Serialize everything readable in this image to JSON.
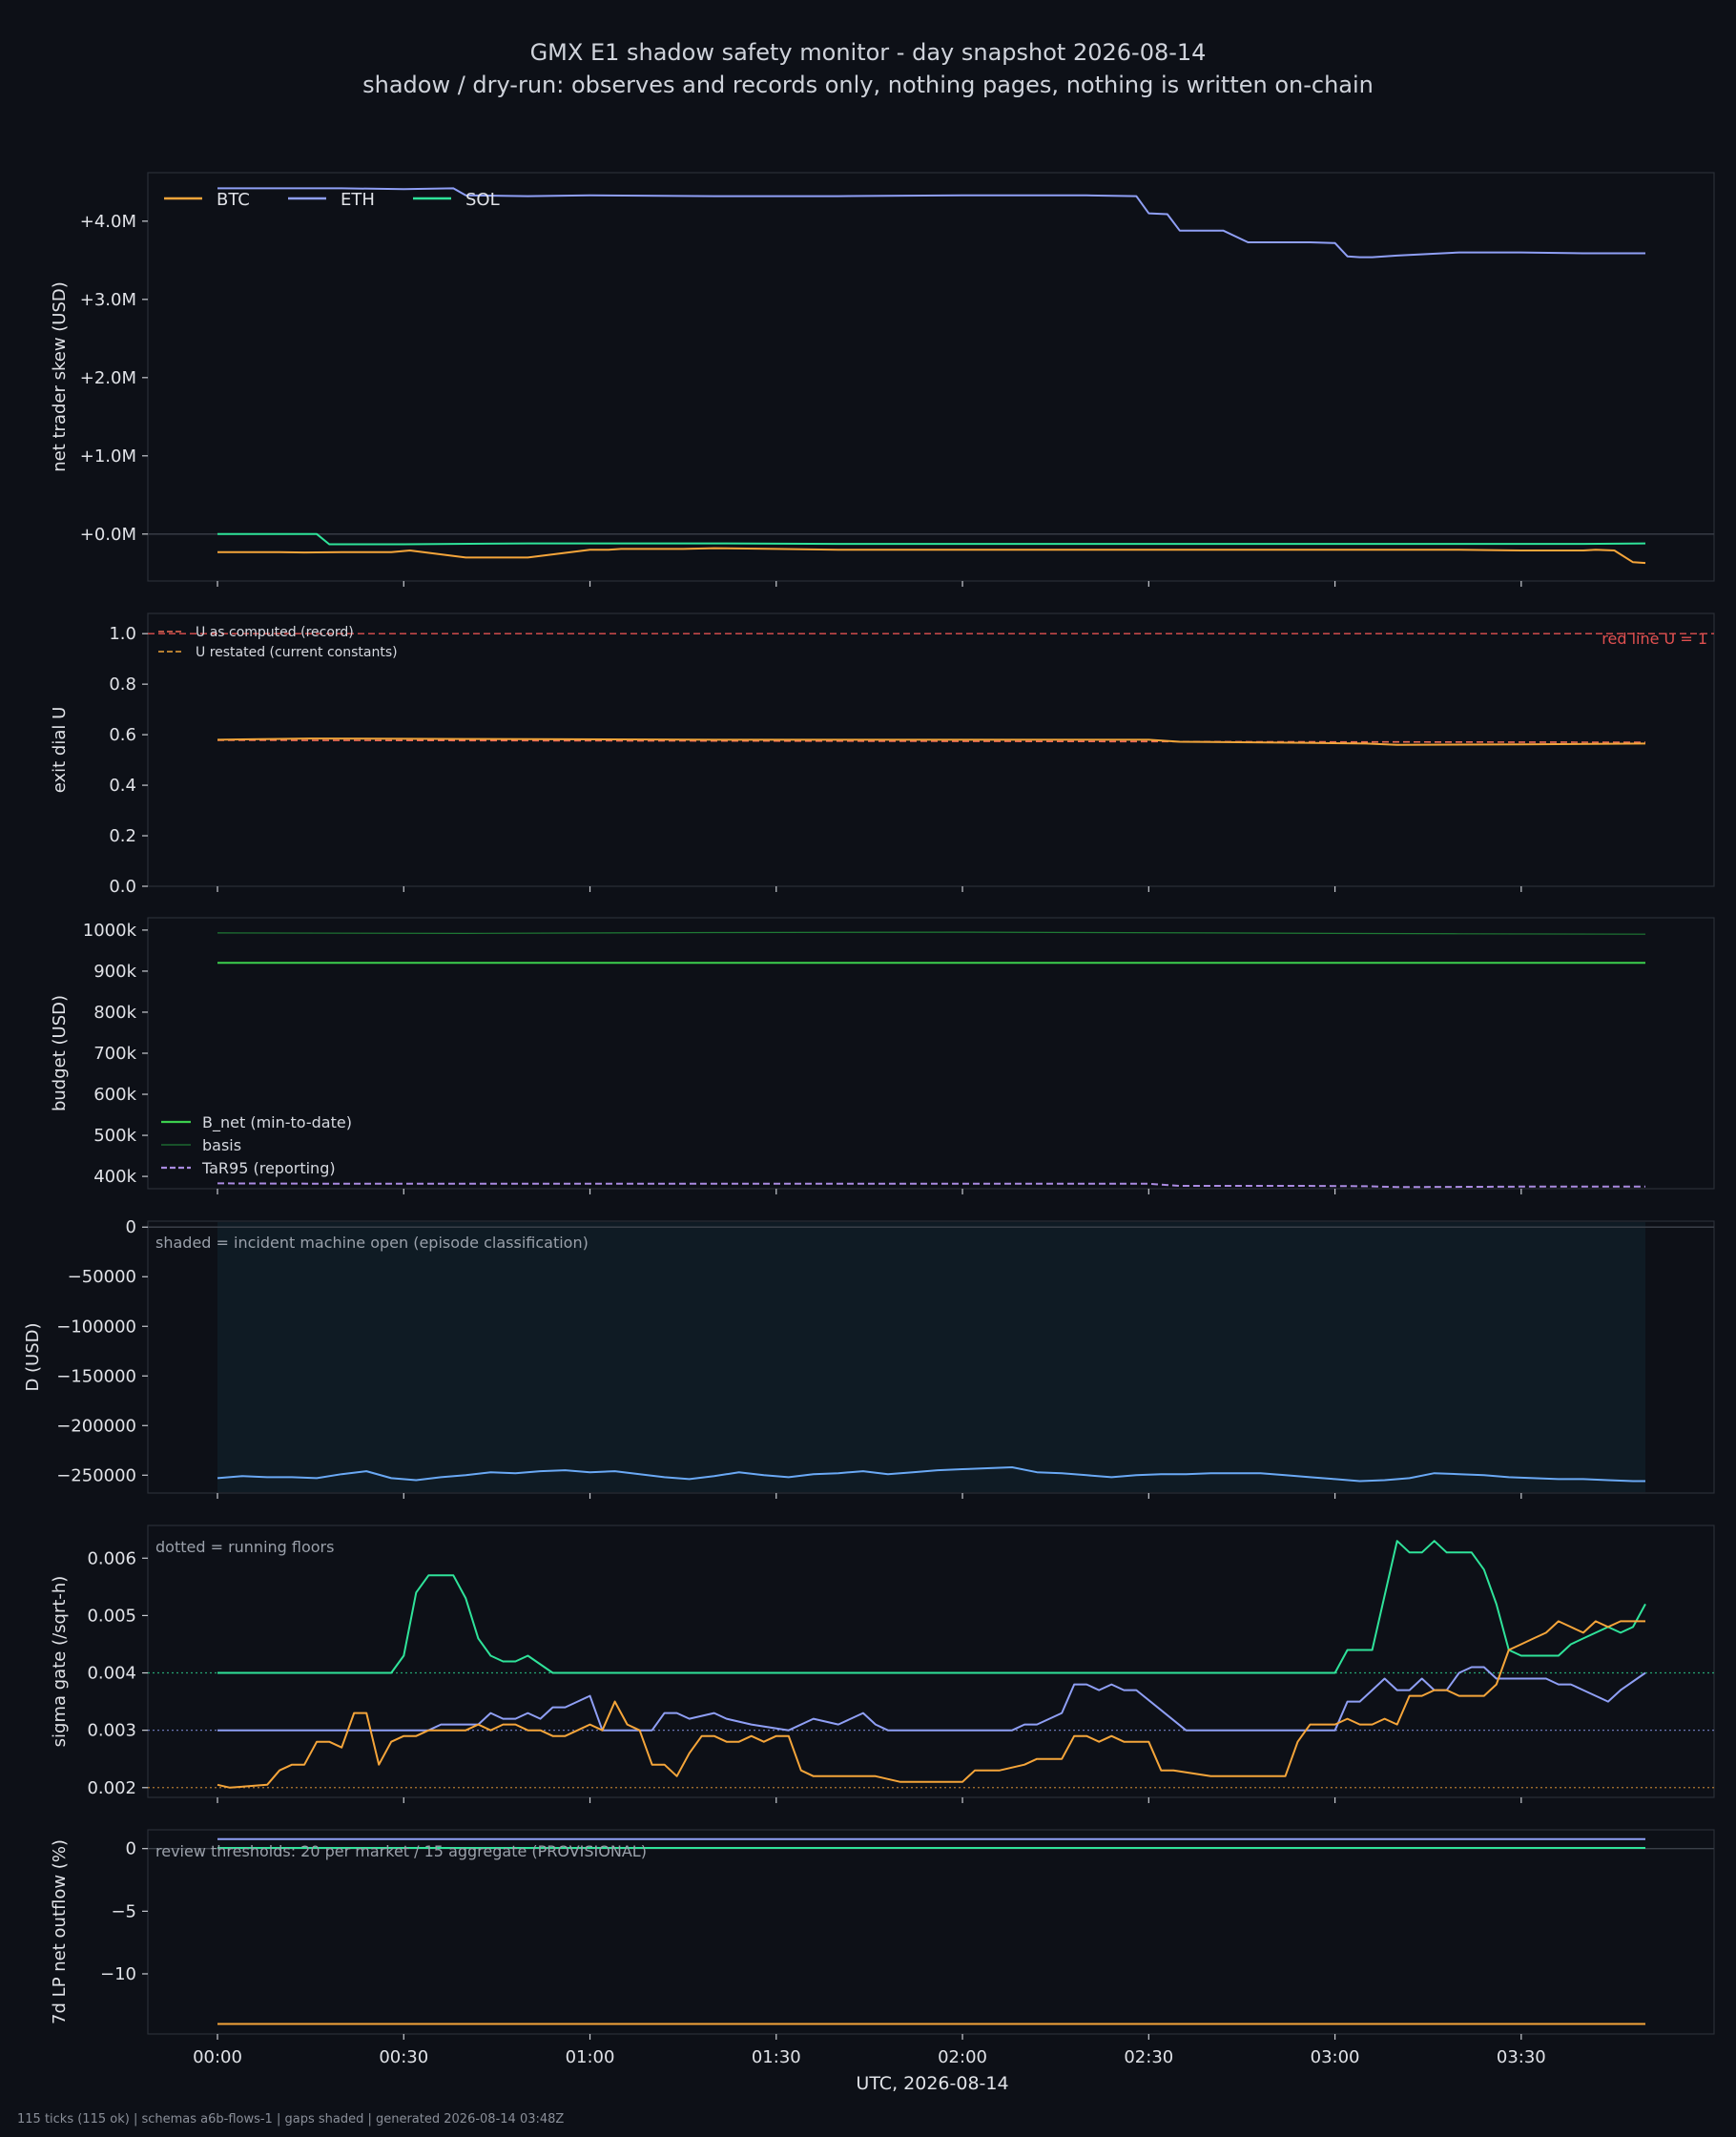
{
  "page": {
    "title": "GMX E1 shadow safety monitor - day snapshot 2026-08-14",
    "subtitle": "shadow / dry-run: observes and records only, nothing pages, nothing is written on-chain",
    "footer": "115 ticks (115 ok) | schemas a6b-flows-1 | gaps shaded | generated 2026-08-14 03:48Z"
  },
  "chart_data": [
    {
      "type": "line",
      "id": "skew",
      "ylabel": "net trader skew (USD)",
      "ylim": [
        -600000,
        4620000
      ],
      "yticks": [
        0,
        1000000,
        2000000,
        3000000,
        4000000
      ],
      "ytick_labels": [
        "+0.0M",
        "+1.0M",
        "+2.0M",
        "+3.0M",
        "+4.0M"
      ],
      "legend": {
        "placement": "top-left",
        "horizontal": true
      },
      "series": [
        {
          "name": "BTC",
          "color": "#f5a53a",
          "x": [
            0,
            10,
            14,
            20,
            25,
            28,
            31,
            40,
            50,
            60,
            63,
            65,
            70,
            75,
            80,
            90,
            100,
            120,
            150,
            180,
            200,
            210,
            212,
            220,
            222,
            225,
            228,
            230
          ],
          "y": [
            -230000,
            -230000,
            -235000,
            -230000,
            -230000,
            -230000,
            -210000,
            -300000,
            -300000,
            -200000,
            -200000,
            -190000,
            -190000,
            -190000,
            -180000,
            -190000,
            -200000,
            -200000,
            -200000,
            -200000,
            -200000,
            -210000,
            -210000,
            -210000,
            -200000,
            -210000,
            -360000,
            -370000
          ]
        },
        {
          "name": "ETH",
          "color": "#8f9ff5",
          "x": [
            0,
            20,
            30,
            38,
            40,
            50,
            60,
            80,
            100,
            120,
            140,
            148,
            150,
            153,
            155,
            160,
            162,
            166,
            170,
            176,
            180,
            182,
            184,
            186,
            190,
            195,
            200,
            210,
            220,
            230
          ],
          "y": [
            4420000,
            4420000,
            4410000,
            4420000,
            4330000,
            4320000,
            4330000,
            4320000,
            4320000,
            4330000,
            4330000,
            4320000,
            4100000,
            4090000,
            3880000,
            3880000,
            3880000,
            3730000,
            3730000,
            3730000,
            3720000,
            3550000,
            3540000,
            3540000,
            3560000,
            3580000,
            3600000,
            3600000,
            3590000,
            3590000
          ]
        },
        {
          "name": "SOL",
          "color": "#2fe39a",
          "x": [
            0,
            16,
            18,
            30,
            50,
            80,
            100,
            130,
            160,
            190,
            220,
            230
          ],
          "y": [
            0,
            0,
            -130000,
            -130000,
            -120000,
            -120000,
            -125000,
            -125000,
            -125000,
            -125000,
            -125000,
            -120000
          ]
        }
      ]
    },
    {
      "type": "line",
      "id": "exitdial",
      "ylabel": "exit dial U",
      "ylim": [
        0,
        1.08
      ],
      "yticks": [
        0,
        0.2,
        0.4,
        0.6,
        0.8,
        1.0
      ],
      "ytick_labels": [
        "0.0",
        "0.2",
        "0.4",
        "0.6",
        "0.8",
        "1.0"
      ],
      "legend": {
        "placement": "top-left"
      },
      "annotation": "red line U = 1",
      "series": [
        {
          "name": "U as computed (record)",
          "color": "#ef6b56",
          "x": [
            0,
            230
          ],
          "y": [
            0.578,
            0.57
          ]
        },
        {
          "name": "U restated (current constants)",
          "color": "#f0a43a",
          "x": [
            0,
            15,
            40,
            80,
            120,
            150,
            155,
            175,
            185,
            190,
            210,
            230
          ],
          "y": [
            0.58,
            0.585,
            0.583,
            0.58,
            0.58,
            0.58,
            0.572,
            0.568,
            0.565,
            0.56,
            0.562,
            0.565
          ]
        }
      ],
      "reference_lines": [
        {
          "y": 1.0,
          "color": "#e05050",
          "style": "dashed"
        }
      ]
    },
    {
      "type": "line",
      "id": "budget",
      "ylabel": "budget (USD)",
      "ylim": [
        370000,
        1030000
      ],
      "yticks": [
        400000,
        500000,
        600000,
        700000,
        800000,
        900000,
        1000000
      ],
      "ytick_labels": [
        "400k",
        "500k",
        "600k",
        "700k",
        "800k",
        "900k",
        "1000k"
      ],
      "legend": {
        "placement": "bottom-left"
      },
      "series": [
        {
          "name": "B_net (min-to-date)",
          "color": "#3ccf4e",
          "x": [
            0,
            230
          ],
          "y": [
            920000,
            920000
          ]
        },
        {
          "name": "basis",
          "color": "#1f7a35",
          "x": [
            0,
            40,
            80,
            120,
            160,
            200,
            230
          ],
          "y": [
            993000,
            992000,
            994000,
            995000,
            993000,
            991000,
            990000
          ]
        },
        {
          "name": "TaR95 (reporting)",
          "color": "#a98ae0",
          "x": [
            0,
            20,
            60,
            100,
            150,
            155,
            175,
            185,
            190,
            210,
            230
          ],
          "y": [
            383000,
            382000,
            382000,
            382000,
            382000,
            377000,
            377000,
            376000,
            374000,
            375000,
            375000
          ]
        }
      ]
    },
    {
      "type": "line",
      "id": "drawdown",
      "ylabel": "D (USD)",
      "ylim": [
        -268000,
        6000
      ],
      "yticks": [
        0,
        -50000,
        -100000,
        -150000,
        -200000,
        -250000
      ],
      "ytick_labels": [
        "0",
        "−50000",
        "−100000",
        "−150000",
        "−200000",
        "−250000"
      ],
      "annotation": "shaded = incident machine open (episode classification)",
      "shaded_span": [
        0,
        230
      ],
      "series": [
        {
          "name": "D",
          "color": "#6aa9f5",
          "x": [
            0,
            4,
            8,
            12,
            16,
            20,
            24,
            28,
            32,
            36,
            40,
            44,
            48,
            52,
            56,
            60,
            64,
            68,
            72,
            76,
            80,
            84,
            88,
            92,
            96,
            100,
            104,
            108,
            112,
            116,
            120,
            124,
            128,
            132,
            136,
            140,
            144,
            148,
            152,
            156,
            160,
            164,
            168,
            172,
            176,
            180,
            184,
            188,
            192,
            196,
            200,
            204,
            208,
            212,
            216,
            220,
            224,
            228,
            230
          ],
          "y": [
            -253000,
            -251000,
            -252000,
            -252000,
            -253000,
            -249000,
            -246000,
            -253000,
            -255000,
            -252000,
            -250000,
            -247000,
            -248000,
            -246000,
            -245000,
            -247000,
            -246000,
            -249000,
            -252000,
            -254000,
            -251000,
            -247000,
            -250000,
            -252000,
            -249000,
            -248000,
            -246000,
            -249000,
            -247000,
            -245000,
            -244000,
            -243000,
            -242000,
            -247000,
            -248000,
            -250000,
            -252000,
            -250000,
            -249000,
            -249000,
            -248000,
            -248000,
            -248000,
            -250000,
            -252000,
            -254000,
            -256000,
            -255000,
            -253000,
            -248000,
            -249000,
            -250000,
            -252000,
            -253000,
            -254000,
            -254000,
            -255000,
            -256000,
            -256000
          ]
        }
      ]
    },
    {
      "type": "line",
      "id": "sigma",
      "ylabel": "sigma gate (/sqrt-h)",
      "ylim": [
        0.00183,
        0.00657
      ],
      "yticks": [
        0.002,
        0.003,
        0.004,
        0.005,
        0.006
      ],
      "ytick_labels": [
        "0.002",
        "0.003",
        "0.004",
        "0.005",
        "0.006"
      ],
      "annotation": "dotted = running floors",
      "reference_lines": [
        {
          "y": 0.004,
          "color": "#2fe39a",
          "style": "dotted"
        },
        {
          "y": 0.003,
          "color": "#8f9ff5",
          "style": "dotted"
        },
        {
          "y": 0.002,
          "color": "#f5a53a",
          "style": "dotted"
        }
      ],
      "series": [
        {
          "name": "SOL",
          "color": "#2fe39a",
          "x": [
            0,
            28,
            30,
            32,
            34,
            38,
            40,
            42,
            44,
            46,
            48,
            50,
            54,
            180,
            182,
            184,
            186,
            190,
            192,
            194,
            196,
            198,
            200,
            202,
            204,
            206,
            208,
            210,
            212,
            216,
            218,
            220,
            222,
            224,
            226,
            228,
            230
          ],
          "y": [
            0.004,
            0.004,
            0.0043,
            0.0054,
            0.0057,
            0.0057,
            0.0053,
            0.0046,
            0.0043,
            0.0042,
            0.0042,
            0.0043,
            0.004,
            0.004,
            0.0044,
            0.0044,
            0.0044,
            0.0063,
            0.0061,
            0.0061,
            0.0063,
            0.0061,
            0.0061,
            0.0061,
            0.0058,
            0.0052,
            0.0044,
            0.0043,
            0.0043,
            0.0043,
            0.0045,
            0.0046,
            0.0047,
            0.0048,
            0.0047,
            0.0048,
            0.0052
          ]
        },
        {
          "name": "ETH",
          "color": "#8f9ff5",
          "x": [
            0,
            34,
            36,
            42,
            44,
            46,
            48,
            50,
            52,
            54,
            56,
            58,
            60,
            62,
            64,
            68,
            70,
            72,
            74,
            76,
            80,
            82,
            86,
            92,
            96,
            100,
            104,
            106,
            108,
            110,
            112,
            114,
            128,
            130,
            132,
            134,
            136,
            138,
            140,
            142,
            144,
            146,
            148,
            156,
            180,
            182,
            184,
            186,
            188,
            190,
            192,
            194,
            196,
            198,
            200,
            202,
            204,
            206,
            208,
            210,
            212,
            214,
            216,
            218,
            220,
            222,
            224,
            226,
            230
          ],
          "y": [
            0.003,
            0.003,
            0.0031,
            0.0031,
            0.0033,
            0.0032,
            0.0032,
            0.0033,
            0.0032,
            0.0034,
            0.0034,
            0.0035,
            0.0036,
            0.003,
            0.003,
            0.003,
            0.003,
            0.0033,
            0.0033,
            0.0032,
            0.0033,
            0.0032,
            0.0031,
            0.003,
            0.0032,
            0.0031,
            0.0033,
            0.0031,
            0.003,
            0.003,
            0.003,
            0.003,
            0.003,
            0.0031,
            0.0031,
            0.0032,
            0.0033,
            0.0038,
            0.0038,
            0.0037,
            0.0038,
            0.0037,
            0.0037,
            0.003,
            0.003,
            0.0035,
            0.0035,
            0.0037,
            0.0039,
            0.0037,
            0.0037,
            0.0039,
            0.0037,
            0.0037,
            0.004,
            0.0041,
            0.0041,
            0.0039,
            0.0039,
            0.0039,
            0.0039,
            0.0039,
            0.0038,
            0.0038,
            0.0037,
            0.0036,
            0.0035,
            0.0037,
            0.004
          ]
        },
        {
          "name": "BTC",
          "color": "#f5a53a",
          "x": [
            0,
            2,
            8,
            10,
            12,
            14,
            16,
            18,
            20,
            22,
            24,
            26,
            28,
            30,
            32,
            34,
            36,
            40,
            42,
            44,
            46,
            48,
            50,
            52,
            54,
            56,
            58,
            60,
            62,
            64,
            66,
            68,
            70,
            72,
            74,
            76,
            78,
            80,
            82,
            84,
            86,
            88,
            90,
            92,
            94,
            96,
            98,
            100,
            106,
            110,
            112,
            114,
            116,
            120,
            122,
            126,
            130,
            132,
            134,
            136,
            138,
            140,
            142,
            144,
            146,
            148,
            150,
            152,
            154,
            160,
            164,
            166,
            168,
            170,
            172,
            174,
            176,
            178,
            180,
            182,
            184,
            186,
            188,
            190,
            192,
            194,
            196,
            198,
            200,
            202,
            204,
            206,
            208,
            210,
            212,
            214,
            216,
            218,
            220,
            222,
            224,
            226,
            228,
            230
          ],
          "y": [
            0.00205,
            0.002,
            0.00205,
            0.0023,
            0.0024,
            0.0024,
            0.0028,
            0.0028,
            0.0027,
            0.0033,
            0.0033,
            0.0024,
            0.0028,
            0.0029,
            0.0029,
            0.003,
            0.003,
            0.003,
            0.0031,
            0.003,
            0.0031,
            0.0031,
            0.003,
            0.003,
            0.0029,
            0.0029,
            0.003,
            0.0031,
            0.003,
            0.0035,
            0.0031,
            0.003,
            0.0024,
            0.0024,
            0.0022,
            0.0026,
            0.0029,
            0.0029,
            0.0028,
            0.0028,
            0.0029,
            0.0028,
            0.0029,
            0.0029,
            0.0023,
            0.0022,
            0.0022,
            0.0022,
            0.0022,
            0.0021,
            0.0021,
            0.0021,
            0.0021,
            0.0021,
            0.0023,
            0.0023,
            0.0024,
            0.0025,
            0.0025,
            0.0025,
            0.0029,
            0.0029,
            0.0028,
            0.0029,
            0.0028,
            0.0028,
            0.0028,
            0.0023,
            0.0023,
            0.0022,
            0.0022,
            0.0022,
            0.0022,
            0.0022,
            0.0022,
            0.0028,
            0.0031,
            0.0031,
            0.0031,
            0.0032,
            0.0031,
            0.0031,
            0.0032,
            0.0031,
            0.0036,
            0.0036,
            0.0037,
            0.0037,
            0.0036,
            0.0036,
            0.0036,
            0.0038,
            0.0044,
            0.0045,
            0.0046,
            0.0047,
            0.0049,
            0.0048,
            0.0047,
            0.0049,
            0.0048,
            0.0049,
            0.0049,
            0.0049
          ]
        }
      ]
    },
    {
      "type": "line",
      "id": "outflow",
      "ylabel": "7d LP net outflow (%)",
      "xlabel": "UTC, 2026-08-14",
      "ylim": [
        -14.8,
        1.5
      ],
      "yticks": [
        0,
        -5,
        -10
      ],
      "ytick_labels": [
        "0",
        "−5",
        "−10"
      ],
      "xticks": [
        0,
        30,
        60,
        90,
        120,
        150,
        180,
        210
      ],
      "xtick_labels": [
        "00:00",
        "00:30",
        "01:00",
        "01:30",
        "02:00",
        "02:30",
        "03:00",
        "03:30"
      ],
      "annotation": "review thresholds: 20 per market / 15 aggregate (PROVISIONAL)",
      "series": [
        {
          "name": "ETH",
          "color": "#8f9ff5",
          "x": [
            0,
            230
          ],
          "y": [
            0.75,
            0.75
          ]
        },
        {
          "name": "SOL",
          "color": "#2fe39a",
          "x": [
            0,
            230
          ],
          "y": [
            0.05,
            0.05
          ]
        },
        {
          "name": "BTC",
          "color": "#f5a53a",
          "x": [
            0,
            230
          ],
          "y": [
            -14,
            -14
          ]
        }
      ]
    }
  ]
}
